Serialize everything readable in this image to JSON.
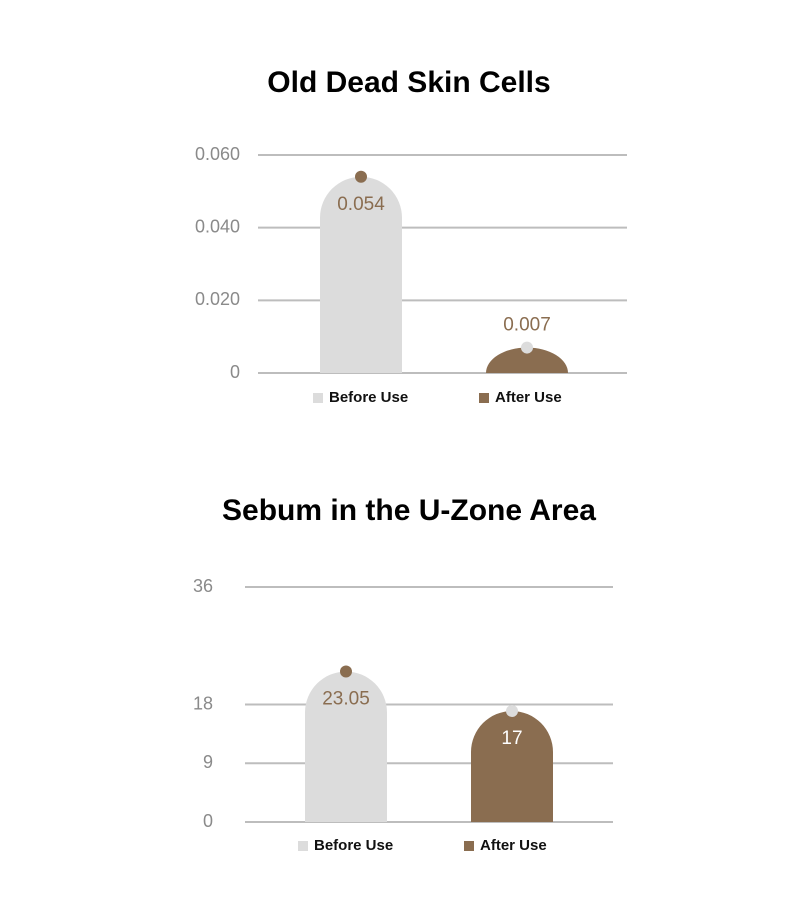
{
  "chart_data": [
    {
      "type": "bar",
      "title": "Old Dead Skin Cells",
      "series": [
        {
          "name": "Before Use",
          "color": "#dcdcdc",
          "values": [
            0.054
          ]
        },
        {
          "name": "After Use",
          "color": "#8a6d50",
          "values": [
            0.007
          ]
        }
      ],
      "ylim": [
        0,
        0.06
      ],
      "yticks": [
        0,
        {
          "value": 0.02,
          "label": "0.020"
        },
        {
          "value": 0.04,
          "label": "0.040"
        },
        {
          "value": 0.06,
          "label": "0.060"
        }
      ],
      "grid": true
    },
    {
      "type": "bar",
      "title": "Sebum in the U-Zone Area",
      "series": [
        {
          "name": "Before Use",
          "color": "#dcdcdc",
          "values": [
            23.05
          ]
        },
        {
          "name": "After Use",
          "color": "#8a6d50",
          "values": [
            17
          ]
        }
      ],
      "ylim": [
        0,
        36
      ],
      "yticks": [
        0,
        9,
        18,
        36
      ],
      "grid": true
    }
  ]
}
